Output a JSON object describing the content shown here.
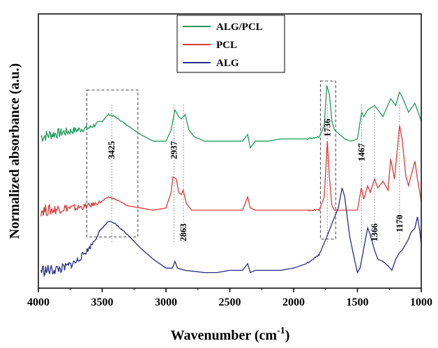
{
  "chart_data": {
    "type": "line",
    "xlabel": "Wavenumber (cm",
    "xlabel_sup": "-1",
    "xlabel_close": ")",
    "ylabel": "Normalized absorbance (a.u.)",
    "xlim": [
      4000,
      1000
    ],
    "x_reversed": true,
    "xticks": [
      4000,
      3500,
      3000,
      2500,
      2000,
      1500,
      1000
    ],
    "grid": false,
    "legend_placement": "top-center",
    "series": [
      {
        "name": "ALG/PCL",
        "color": "#1e9a5c",
        "points": [
          [
            3980,
            0.63
          ],
          [
            3900,
            0.64
          ],
          [
            3800,
            0.65
          ],
          [
            3700,
            0.66
          ],
          [
            3600,
            0.67
          ],
          [
            3500,
            0.7
          ],
          [
            3450,
            0.73
          ],
          [
            3400,
            0.72
          ],
          [
            3300,
            0.68
          ],
          [
            3200,
            0.64
          ],
          [
            3100,
            0.61
          ],
          [
            3000,
            0.61
          ],
          [
            2960,
            0.66
          ],
          [
            2930,
            0.75
          ],
          [
            2900,
            0.72
          ],
          [
            2880,
            0.71
          ],
          [
            2850,
            0.73
          ],
          [
            2820,
            0.66
          ],
          [
            2780,
            0.63
          ],
          [
            2700,
            0.61
          ],
          [
            2600,
            0.61
          ],
          [
            2500,
            0.61
          ],
          [
            2400,
            0.61
          ],
          [
            2360,
            0.64
          ],
          [
            2340,
            0.58
          ],
          [
            2300,
            0.61
          ],
          [
            2200,
            0.61
          ],
          [
            2100,
            0.62
          ],
          [
            2000,
            0.62
          ],
          [
            1900,
            0.62
          ],
          [
            1800,
            0.63
          ],
          [
            1760,
            0.68
          ],
          [
            1740,
            0.86
          ],
          [
            1720,
            0.82
          ],
          [
            1700,
            0.7
          ],
          [
            1680,
            0.66
          ],
          [
            1640,
            0.64
          ],
          [
            1600,
            0.62
          ],
          [
            1550,
            0.61
          ],
          [
            1500,
            0.62
          ],
          [
            1467,
            0.74
          ],
          [
            1450,
            0.72
          ],
          [
            1420,
            0.75
          ],
          [
            1366,
            0.77
          ],
          [
            1300,
            0.72
          ],
          [
            1240,
            0.8
          ],
          [
            1200,
            0.77
          ],
          [
            1170,
            0.83
          ],
          [
            1150,
            0.81
          ],
          [
            1100,
            0.74
          ],
          [
            1050,
            0.78
          ],
          [
            1000,
            0.7
          ]
        ]
      },
      {
        "name": "PCL",
        "color": "#d93a3a",
        "points": [
          [
            3980,
            0.3
          ],
          [
            3900,
            0.3
          ],
          [
            3800,
            0.31
          ],
          [
            3700,
            0.31
          ],
          [
            3600,
            0.32
          ],
          [
            3500,
            0.34
          ],
          [
            3450,
            0.36
          ],
          [
            3400,
            0.35
          ],
          [
            3300,
            0.32
          ],
          [
            3200,
            0.31
          ],
          [
            3100,
            0.3
          ],
          [
            3000,
            0.31
          ],
          [
            2960,
            0.38
          ],
          [
            2945,
            0.45
          ],
          [
            2920,
            0.44
          ],
          [
            2900,
            0.38
          ],
          [
            2880,
            0.37
          ],
          [
            2865,
            0.39
          ],
          [
            2840,
            0.33
          ],
          [
            2800,
            0.3
          ],
          [
            2700,
            0.3
          ],
          [
            2600,
            0.3
          ],
          [
            2500,
            0.3
          ],
          [
            2400,
            0.3
          ],
          [
            2360,
            0.36
          ],
          [
            2340,
            0.31
          ],
          [
            2300,
            0.3
          ],
          [
            2200,
            0.3
          ],
          [
            2100,
            0.3
          ],
          [
            2000,
            0.3
          ],
          [
            1900,
            0.3
          ],
          [
            1800,
            0.3
          ],
          [
            1760,
            0.36
          ],
          [
            1736,
            0.61
          ],
          [
            1720,
            0.45
          ],
          [
            1700,
            0.32
          ],
          [
            1680,
            0.3
          ],
          [
            1600,
            0.3
          ],
          [
            1500,
            0.3
          ],
          [
            1470,
            0.4
          ],
          [
            1450,
            0.35
          ],
          [
            1420,
            0.41
          ],
          [
            1400,
            0.38
          ],
          [
            1366,
            0.44
          ],
          [
            1340,
            0.4
          ],
          [
            1300,
            0.43
          ],
          [
            1260,
            0.39
          ],
          [
            1240,
            0.53
          ],
          [
            1210,
            0.44
          ],
          [
            1170,
            0.68
          ],
          [
            1150,
            0.62
          ],
          [
            1120,
            0.45
          ],
          [
            1100,
            0.41
          ],
          [
            1050,
            0.52
          ],
          [
            1030,
            0.44
          ],
          [
            1000,
            0.34
          ]
        ]
      },
      {
        "name": "ALG",
        "color": "#2a2a84",
        "points": [
          [
            3980,
            0.03
          ],
          [
            3900,
            0.03
          ],
          [
            3800,
            0.04
          ],
          [
            3700,
            0.07
          ],
          [
            3600,
            0.13
          ],
          [
            3500,
            0.22
          ],
          [
            3450,
            0.25
          ],
          [
            3400,
            0.24
          ],
          [
            3300,
            0.19
          ],
          [
            3200,
            0.13
          ],
          [
            3100,
            0.08
          ],
          [
            3000,
            0.04
          ],
          [
            2950,
            0.04
          ],
          [
            2930,
            0.07
          ],
          [
            2910,
            0.04
          ],
          [
            2850,
            0.03
          ],
          [
            2700,
            0.02
          ],
          [
            2600,
            0.02
          ],
          [
            2500,
            0.03
          ],
          [
            2400,
            0.03
          ],
          [
            2360,
            0.06
          ],
          [
            2340,
            0.02
          ],
          [
            2300,
            0.03
          ],
          [
            2200,
            0.03
          ],
          [
            2100,
            0.03
          ],
          [
            2000,
            0.04
          ],
          [
            1900,
            0.06
          ],
          [
            1800,
            0.1
          ],
          [
            1740,
            0.18
          ],
          [
            1700,
            0.24
          ],
          [
            1650,
            0.31
          ],
          [
            1620,
            0.4
          ],
          [
            1600,
            0.36
          ],
          [
            1560,
            0.18
          ],
          [
            1520,
            0.07
          ],
          [
            1500,
            0.02
          ],
          [
            1480,
            0.04
          ],
          [
            1450,
            0.13
          ],
          [
            1420,
            0.22
          ],
          [
            1400,
            0.19
          ],
          [
            1366,
            0.12
          ],
          [
            1340,
            0.08
          ],
          [
            1300,
            0.07
          ],
          [
            1260,
            0.05
          ],
          [
            1230,
            0.03
          ],
          [
            1200,
            0.08
          ],
          [
            1170,
            0.11
          ],
          [
            1150,
            0.12
          ],
          [
            1120,
            0.15
          ],
          [
            1100,
            0.17
          ],
          [
            1080,
            0.2
          ],
          [
            1050,
            0.22
          ],
          [
            1030,
            0.27
          ],
          [
            1010,
            0.2
          ],
          [
            1000,
            0.15
          ]
        ]
      }
    ],
    "annotations": [
      {
        "label": "3425",
        "x": 3425,
        "y": 0.57
      },
      {
        "label": "2937",
        "x": 2937,
        "y": 0.57
      },
      {
        "label": "2863",
        "x": 2863,
        "y": 0.2
      },
      {
        "label": "1736",
        "x": 1736,
        "y": 0.67
      },
      {
        "label": "1467",
        "x": 1467,
        "y": 0.56
      },
      {
        "label": "1366",
        "x": 1366,
        "y": 0.2
      },
      {
        "label": "1170",
        "x": 1170,
        "y": 0.24
      }
    ],
    "vlines": [
      3425,
      2937,
      2863,
      1736,
      1467,
      1366,
      1170
    ],
    "highlight_boxes": [
      {
        "x0": 3620,
        "x1": 3220,
        "y0": 0.18,
        "y1": 0.84
      },
      {
        "x0": 1790,
        "x1": 1670,
        "y0": 0.17,
        "y1": 0.88
      }
    ]
  }
}
